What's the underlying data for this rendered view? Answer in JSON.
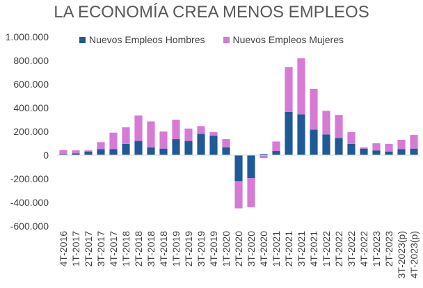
{
  "chart_data": {
    "type": "bar",
    "stacked": true,
    "title": "LA ECONOMÍA CREA MENOS EMPLEOS",
    "categories": [
      "4T-2016",
      "1T-2017",
      "2T-2017",
      "3T-2017",
      "4T-2017",
      "1T-2018",
      "2T-2018",
      "3T-2018",
      "4T-2018",
      "1T-2019",
      "2T-2019",
      "3T-2019",
      "4T-2019",
      "1T-2020",
      "2T-2020",
      "3T-2020",
      "4T-2020",
      "1T-2021",
      "2T-2021",
      "3T-2021",
      "4T-2021",
      "1T-2022",
      "2T-2022",
      "3T-2022",
      "4T-2022",
      "1T-2023",
      "2T-2023",
      "3T-2023(p)",
      "4T-2023(p)"
    ],
    "series": [
      {
        "name": "Nuevos Empleos Hombres",
        "color": "#1F5A96",
        "values": [
          8000,
          15000,
          30000,
          50000,
          50000,
          95000,
          120000,
          65000,
          55000,
          135000,
          120000,
          180000,
          165000,
          65000,
          -220000,
          -195000,
          10000,
          35000,
          365000,
          345000,
          215000,
          175000,
          145000,
          95000,
          55000,
          40000,
          30000,
          50000,
          55000
        ]
      },
      {
        "name": "Nuevos Empleos Mujeres",
        "color": "#D57BD5",
        "values": [
          35000,
          25000,
          10000,
          60000,
          140000,
          140000,
          215000,
          220000,
          145000,
          165000,
          105000,
          65000,
          30000,
          70000,
          -230000,
          -245000,
          -25000,
          80000,
          380000,
          475000,
          345000,
          200000,
          195000,
          100000,
          10000,
          60000,
          65000,
          80000,
          115000
        ]
      }
    ],
    "ylim": [
      -600000,
      1000000
    ],
    "yticks": [
      {
        "value": 1000000,
        "label": "1.000.000"
      },
      {
        "value": 800000,
        "label": "800.000"
      },
      {
        "value": 600000,
        "label": "600.000"
      },
      {
        "value": 400000,
        "label": "400.000"
      },
      {
        "value": 200000,
        "label": "200.000"
      },
      {
        "value": 0,
        "label": "0"
      },
      {
        "value": -200000,
        "label": "-200.000"
      },
      {
        "value": -400000,
        "label": "-400.000"
      },
      {
        "value": -600000,
        "label": "-600.000"
      }
    ],
    "legend_position": "top-center",
    "grid": false
  }
}
